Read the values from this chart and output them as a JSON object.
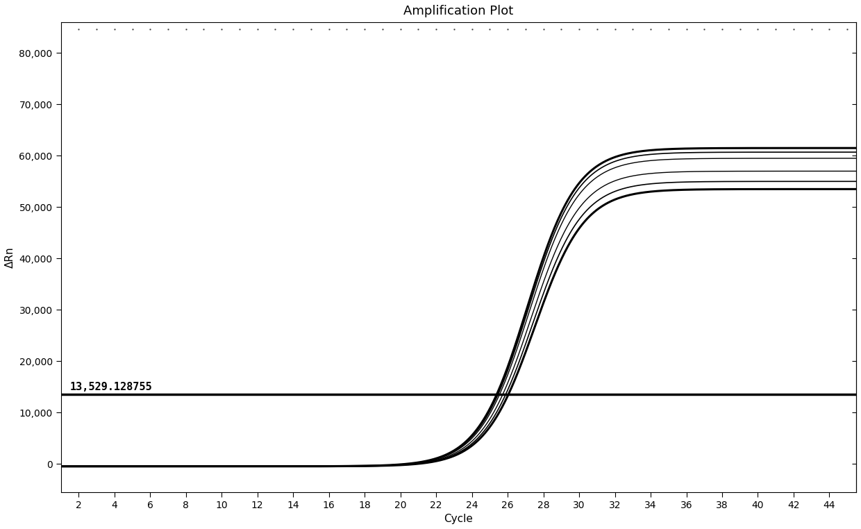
{
  "title": "Amplification Plot",
  "xlabel": "Cycle",
  "ylabel": "ΔRn",
  "xlim": [
    1,
    45.5
  ],
  "ylim": [
    -5500,
    86000
  ],
  "xticks": [
    2,
    4,
    6,
    8,
    10,
    12,
    14,
    16,
    18,
    20,
    22,
    24,
    26,
    28,
    30,
    32,
    34,
    36,
    38,
    40,
    42,
    44
  ],
  "yticks": [
    0,
    10000,
    20000,
    30000,
    40000,
    50000,
    60000,
    70000,
    80000
  ],
  "ytick_labels": [
    "0",
    "10,000",
    "20,000",
    "30,000",
    "40,000",
    "50,000",
    "60,000",
    "70,000",
    "80,000"
  ],
  "threshold_y": 13529.128755,
  "threshold_label": "13,529.128755",
  "background_color": "#ffffff",
  "plot_background": "#ffffff",
  "curve_color": "#000000",
  "threshold_color": "#000000",
  "num_curves": 6,
  "curve_plateaus": [
    62000,
    61200,
    60000,
    57500,
    55500,
    54000
  ],
  "curve_midpoints": [
    27.1,
    27.15,
    27.2,
    27.3,
    27.4,
    27.5
  ],
  "curve_steepness": [
    0.72,
    0.72,
    0.72,
    0.72,
    0.72,
    0.72
  ],
  "curve_baselines": [
    -500,
    -500,
    -500,
    -500,
    -500,
    -500
  ],
  "curve_linewidths": [
    2.2,
    1.2,
    1.0,
    1.0,
    1.2,
    2.2
  ],
  "title_fontsize": 13,
  "label_fontsize": 11,
  "tick_fontsize": 10,
  "top_dotted_y": 84000
}
